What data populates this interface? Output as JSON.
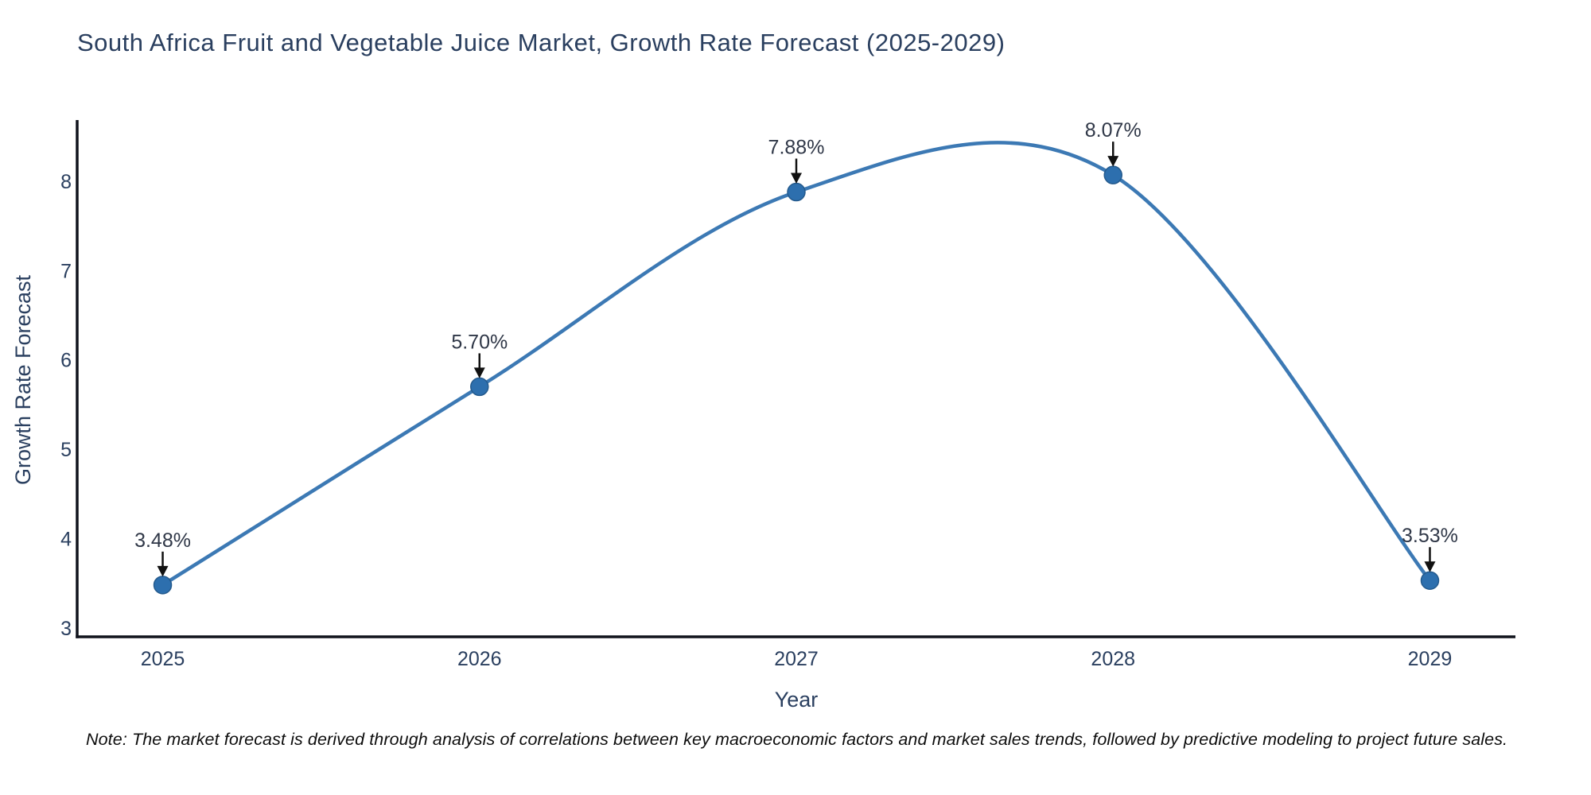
{
  "page": {
    "title": "South Africa Fruit and Vegetable Juice Market, Growth Rate Forecast (2025-2029)",
    "note": "Note: The market forecast is derived through analysis of correlations between key macroeconomic factors and market sales trends, followed by predictive modeling to project future sales."
  },
  "colors": {
    "line": "#3c79b4",
    "marker_fill": "#2d6fae",
    "marker_edge": "#245a8d",
    "axis_line": "#10131c",
    "tick_text": "#2a3f5f",
    "annotation_text": "#2f3747",
    "arrow": "#111111",
    "background": "#ffffff"
  },
  "chart_data": {
    "type": "line",
    "line_shape": "spline",
    "title": "South Africa Fruit and Vegetable Juice Market, Growth Rate Forecast (2025-2029)",
    "xlabel": "Year",
    "ylabel": "Growth Rate Forecast",
    "x": [
      2025,
      2026,
      2027,
      2028,
      2029
    ],
    "values": [
      3.48,
      5.7,
      7.88,
      8.07,
      3.53
    ],
    "point_labels": [
      "3.48%",
      "5.70%",
      "7.88%",
      "8.07%",
      "3.53%"
    ],
    "series_name": "Growth Rate Forecast",
    "x_ticks": [
      2025,
      2026,
      2027,
      2028,
      2029
    ],
    "y_ticks": [
      3,
      4,
      5,
      6,
      7,
      8
    ],
    "x_range": [
      2024.73,
      2029.27
    ],
    "y_range": [
      2.9,
      8.65
    ],
    "grid": false,
    "legend": false,
    "annotations": "value labels with downward arrows above each point"
  }
}
